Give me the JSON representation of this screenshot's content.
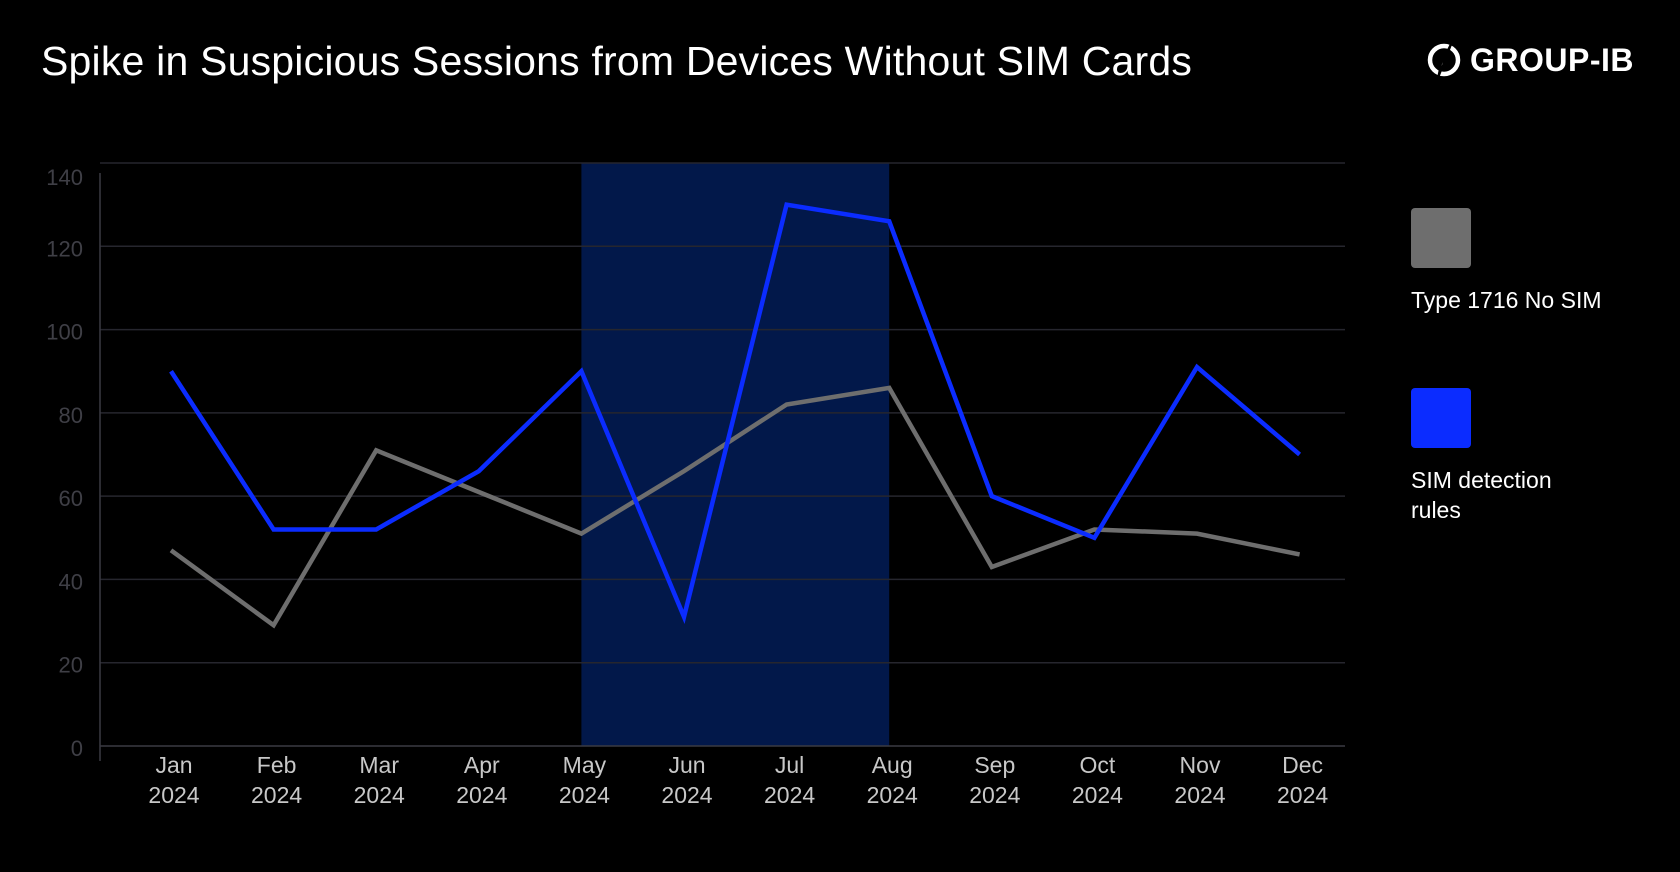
{
  "title": "Spike in Suspicious Sessions from Devices Without SIM Cards",
  "logo": {
    "text": "GROUP-IB",
    "icon": "group-ib-logo-icon"
  },
  "chart_data": {
    "type": "line",
    "title": "Spike in Suspicious Sessions from Devices Without SIM Cards",
    "categories": [
      [
        "Jan",
        "2024"
      ],
      [
        "Feb",
        "2024"
      ],
      [
        "Mar",
        "2024"
      ],
      [
        "Apr",
        "2024"
      ],
      [
        "May",
        "2024"
      ],
      [
        "Jun",
        "2024"
      ],
      [
        "Jul",
        "2024"
      ],
      [
        "Aug",
        "2024"
      ],
      [
        "Sep",
        "2024"
      ],
      [
        "Oct",
        "2024"
      ],
      [
        "Nov",
        "2024"
      ],
      [
        "Dec",
        "2024"
      ]
    ],
    "series": [
      {
        "name": "Type 1716 No SIM",
        "color": "#6e6e6e",
        "values": [
          47,
          29,
          71,
          61,
          51,
          66,
          82,
          86,
          43,
          52,
          51,
          46
        ]
      },
      {
        "name": "SIM detection rules",
        "color": "#0b2cff",
        "values": [
          90,
          52,
          52,
          66,
          90,
          31,
          130,
          126,
          60,
          50,
          91,
          70
        ]
      }
    ],
    "highlight": {
      "from": "May",
      "to": "Aug",
      "color": "#02184a"
    },
    "yticks": [
      0,
      20,
      40,
      60,
      80,
      100,
      120,
      140
    ],
    "ylim": [
      0,
      140
    ],
    "grid": true,
    "legend_placement": "right",
    "xlabel": "",
    "ylabel": ""
  }
}
